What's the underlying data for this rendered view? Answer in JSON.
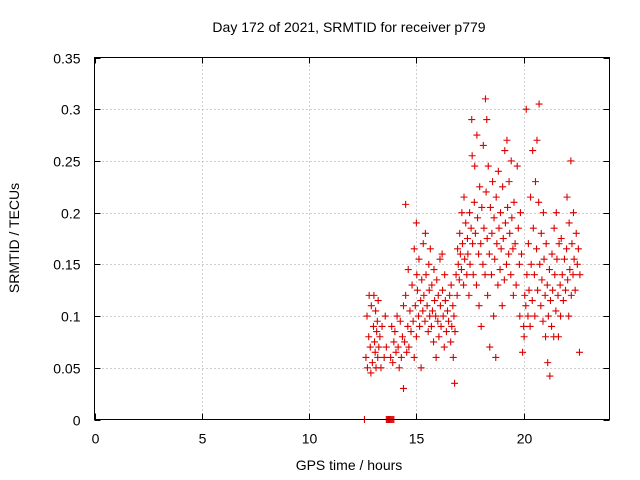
{
  "chart_data": {
    "type": "scatter",
    "title": "Day 172 of 2021, SRMTID for receiver p779",
    "xlabel": "GPS time / hours",
    "ylabel": "SRMTID / TECUs",
    "xlim": [
      0,
      24
    ],
    "ylim": [
      0,
      0.35
    ],
    "xticks": [
      0,
      5,
      10,
      15,
      20
    ],
    "xtick_labels": [
      "0",
      "5",
      "10",
      "15",
      "20"
    ],
    "yticks": [
      0,
      0.05,
      0.1,
      0.15,
      0.2,
      0.25,
      0.3,
      0.35
    ],
    "ytick_labels": [
      "0",
      "0.05",
      "0.1",
      "0.15",
      "0.2",
      "0.25",
      "0.3",
      "0.35"
    ],
    "grid": true,
    "marker": "plus",
    "color": "#dd0000",
    "series": [
      {
        "name": "SRMTID",
        "points": [
          [
            12.58,
            0.0
          ],
          [
            13.6,
            0.0
          ],
          [
            13.65,
            0.0
          ],
          [
            13.7,
            0.0
          ],
          [
            13.75,
            0.0
          ],
          [
            13.8,
            0.0
          ],
          [
            13.85,
            0.0
          ],
          [
            13.9,
            0.0
          ],
          [
            13.95,
            0.0
          ],
          [
            12.65,
            0.06
          ],
          [
            12.7,
            0.1
          ],
          [
            12.72,
            0.05
          ],
          [
            12.78,
            0.08
          ],
          [
            12.8,
            0.12
          ],
          [
            12.85,
            0.07
          ],
          [
            12.88,
            0.045
          ],
          [
            12.9,
            0.11
          ],
          [
            12.95,
            0.055
          ],
          [
            13.0,
            0.09
          ],
          [
            13.02,
            0.12
          ],
          [
            13.05,
            0.075
          ],
          [
            13.08,
            0.065
          ],
          [
            13.1,
            0.105
          ],
          [
            13.12,
            0.05
          ],
          [
            13.15,
            0.085
          ],
          [
            13.18,
            0.095
          ],
          [
            13.2,
            0.06
          ],
          [
            13.22,
            0.115
          ],
          [
            13.25,
            0.07
          ],
          [
            13.3,
            0.08
          ],
          [
            13.35,
            0.05
          ],
          [
            13.4,
            0.09
          ],
          [
            13.5,
            0.06
          ],
          [
            13.55,
            0.1
          ],
          [
            13.6,
            0.07
          ],
          [
            13.8,
            0.06
          ],
          [
            13.85,
            0.09
          ],
          [
            13.9,
            0.055
          ],
          [
            13.95,
            0.075
          ],
          [
            14.0,
            0.085
          ],
          [
            14.05,
            0.065
          ],
          [
            14.1,
            0.1
          ],
          [
            14.15,
            0.07
          ],
          [
            14.2,
            0.05
          ],
          [
            14.25,
            0.095
          ],
          [
            14.3,
            0.06
          ],
          [
            14.35,
            0.08
          ],
          [
            14.4,
            0.03
          ],
          [
            14.4,
            0.11
          ],
          [
            14.45,
            0.075
          ],
          [
            14.5,
            0.12
          ],
          [
            14.5,
            0.208
          ],
          [
            14.55,
            0.065
          ],
          [
            14.6,
            0.09
          ],
          [
            14.62,
            0.145
          ],
          [
            14.65,
            0.07
          ],
          [
            14.7,
            0.105
          ],
          [
            14.75,
            0.085
          ],
          [
            14.8,
            0.13
          ],
          [
            14.85,
            0.095
          ],
          [
            14.9,
            0.165
          ],
          [
            14.9,
            0.06
          ],
          [
            14.95,
            0.11
          ],
          [
            15.0,
            0.08
          ],
          [
            15.0,
            0.19
          ],
          [
            15.02,
            0.14
          ],
          [
            15.05,
            0.125
          ],
          [
            15.1,
            0.1
          ],
          [
            15.12,
            0.155
          ],
          [
            15.15,
            0.09
          ],
          [
            15.2,
            0.115
          ],
          [
            15.22,
            0.05
          ],
          [
            15.25,
            0.135
          ],
          [
            15.3,
            0.105
          ],
          [
            15.32,
            0.17
          ],
          [
            15.35,
            0.12
          ],
          [
            15.4,
            0.095
          ],
          [
            15.42,
            0.18
          ],
          [
            15.45,
            0.14
          ],
          [
            15.5,
            0.11
          ],
          [
            15.55,
            0.085
          ],
          [
            15.58,
            0.15
          ],
          [
            15.6,
            0.125
          ],
          [
            15.62,
            0.1
          ],
          [
            15.65,
            0.165
          ],
          [
            15.7,
            0.09
          ],
          [
            15.72,
            0.13
          ],
          [
            15.75,
            0.105
          ],
          [
            15.8,
            0.075
          ],
          [
            15.82,
            0.145
          ],
          [
            15.85,
            0.115
          ],
          [
            15.9,
            0.1
          ],
          [
            15.92,
            0.06
          ],
          [
            15.95,
            0.135
          ],
          [
            16.0,
            0.095
          ],
          [
            16.02,
            0.12
          ],
          [
            16.05,
            0.08
          ],
          [
            16.1,
            0.155
          ],
          [
            16.12,
            0.11
          ],
          [
            16.15,
            0.09
          ],
          [
            16.2,
            0.16
          ],
          [
            16.22,
            0.125
          ],
          [
            16.25,
            0.1
          ],
          [
            16.3,
            0.07
          ],
          [
            16.32,
            0.14
          ],
          [
            16.35,
            0.115
          ],
          [
            16.4,
            0.085
          ],
          [
            16.45,
            0.105
          ],
          [
            16.5,
            0.095
          ],
          [
            16.55,
            0.12
          ],
          [
            16.6,
            0.075
          ],
          [
            16.62,
            0.13
          ],
          [
            16.65,
            0.09
          ],
          [
            16.7,
            0.11
          ],
          [
            16.72,
            0.06
          ],
          [
            16.75,
            0.1
          ],
          [
            16.78,
            0.035
          ],
          [
            16.8,
            0.085
          ],
          [
            16.85,
            0.14
          ],
          [
            16.9,
            0.12
          ],
          [
            16.92,
            0.165
          ],
          [
            16.95,
            0.15
          ],
          [
            17.0,
            0.135
          ],
          [
            17.02,
            0.18
          ],
          [
            17.05,
            0.16
          ],
          [
            17.1,
            0.145
          ],
          [
            17.12,
            0.2
          ],
          [
            17.15,
            0.17
          ],
          [
            17.2,
            0.13
          ],
          [
            17.22,
            0.215
          ],
          [
            17.25,
            0.155
          ],
          [
            17.3,
            0.19
          ],
          [
            17.35,
            0.14
          ],
          [
            17.38,
            0.175
          ],
          [
            17.4,
            0.16
          ],
          [
            17.45,
            0.12
          ],
          [
            17.48,
            0.2
          ],
          [
            17.5,
            0.15
          ],
          [
            17.55,
            0.185
          ],
          [
            17.58,
            0.29
          ],
          [
            17.6,
            0.255
          ],
          [
            17.62,
            0.17
          ],
          [
            17.65,
            0.14
          ],
          [
            17.7,
            0.21
          ],
          [
            17.72,
            0.245
          ],
          [
            17.75,
            0.18
          ],
          [
            17.8,
            0.13
          ],
          [
            17.82,
            0.275
          ],
          [
            17.85,
            0.195
          ],
          [
            17.9,
            0.16
          ],
          [
            17.92,
            0.11
          ],
          [
            17.95,
            0.225
          ],
          [
            18.0,
            0.17
          ],
          [
            18.02,
            0.09
          ],
          [
            18.05,
            0.205
          ],
          [
            18.1,
            0.15
          ],
          [
            18.12,
            0.265
          ],
          [
            18.15,
            0.185
          ],
          [
            18.2,
            0.14
          ],
          [
            18.22,
            0.31
          ],
          [
            18.25,
            0.22
          ],
          [
            18.28,
            0.29
          ],
          [
            18.3,
            0.175
          ],
          [
            18.32,
            0.12
          ],
          [
            18.35,
            0.245
          ],
          [
            18.4,
            0.16
          ],
          [
            18.42,
            0.07
          ],
          [
            18.45,
            0.205
          ],
          [
            18.5,
            0.14
          ],
          [
            18.52,
            0.18
          ],
          [
            18.55,
            0.23
          ],
          [
            18.6,
            0.1
          ],
          [
            18.62,
            0.195
          ],
          [
            18.65,
            0.155
          ],
          [
            18.7,
            0.06
          ],
          [
            18.72,
            0.215
          ],
          [
            18.75,
            0.17
          ],
          [
            18.8,
            0.13
          ],
          [
            18.82,
            0.24
          ],
          [
            18.85,
            0.185
          ],
          [
            18.9,
            0.145
          ],
          [
            18.92,
            0.2
          ],
          [
            18.95,
            0.165
          ],
          [
            19.0,
            0.11
          ],
          [
            19.02,
            0.225
          ],
          [
            19.05,
            0.175
          ],
          [
            19.1,
            0.135
          ],
          [
            19.12,
            0.26
          ],
          [
            19.15,
            0.19
          ],
          [
            19.2,
            0.15
          ],
          [
            19.22,
            0.27
          ],
          [
            19.25,
            0.205
          ],
          [
            19.3,
            0.16
          ],
          [
            19.32,
            0.23
          ],
          [
            19.35,
            0.18
          ],
          [
            19.4,
            0.14
          ],
          [
            19.42,
            0.25
          ],
          [
            19.45,
            0.195
          ],
          [
            19.5,
            0.165
          ],
          [
            19.52,
            0.12
          ],
          [
            19.55,
            0.21
          ],
          [
            19.6,
            0.17
          ],
          [
            19.65,
            0.13
          ],
          [
            19.7,
            0.245
          ],
          [
            19.75,
            0.185
          ],
          [
            19.8,
            0.15
          ],
          [
            19.82,
            0.1
          ],
          [
            19.85,
            0.2
          ],
          [
            19.9,
            0.16
          ],
          [
            19.95,
            0.065
          ],
          [
            20.0,
            0.09
          ],
          [
            20.02,
            0.08
          ],
          [
            20.05,
            0.12
          ],
          [
            20.1,
            0.11
          ],
          [
            20.12,
            0.3
          ],
          [
            20.15,
            0.14
          ],
          [
            20.2,
            0.1
          ],
          [
            20.22,
            0.17
          ],
          [
            20.25,
            0.125
          ],
          [
            20.3,
            0.09
          ],
          [
            20.32,
            0.215
          ],
          [
            20.35,
            0.15
          ],
          [
            20.4,
            0.115
          ],
          [
            20.42,
            0.26
          ],
          [
            20.45,
            0.185
          ],
          [
            20.5,
            0.14
          ],
          [
            20.52,
            0.1
          ],
          [
            20.55,
            0.23
          ],
          [
            20.6,
            0.165
          ],
          [
            20.62,
            0.27
          ],
          [
            20.65,
            0.125
          ],
          [
            20.7,
            0.21
          ],
          [
            20.72,
            0.305
          ],
          [
            20.75,
            0.15
          ],
          [
            20.8,
            0.11
          ],
          [
            20.82,
            0.18
          ],
          [
            20.85,
            0.135
          ],
          [
            20.9,
            0.095
          ],
          [
            20.92,
            0.2
          ],
          [
            20.95,
            0.155
          ],
          [
            21.0,
            0.12
          ],
          [
            21.02,
            0.08
          ],
          [
            21.05,
            0.17
          ],
          [
            21.1,
            0.13
          ],
          [
            21.12,
            0.055
          ],
          [
            21.15,
            0.1
          ],
          [
            21.2,
            0.145
          ],
          [
            21.22,
            0.042
          ],
          [
            21.25,
            0.115
          ],
          [
            21.3,
            0.09
          ],
          [
            21.32,
            0.16
          ],
          [
            21.35,
            0.125
          ],
          [
            21.4,
            0.08
          ],
          [
            21.42,
            0.185
          ],
          [
            21.45,
            0.14
          ],
          [
            21.5,
            0.105
          ],
          [
            21.52,
            0.2
          ],
          [
            21.55,
            0.155
          ],
          [
            21.6,
            0.12
          ],
          [
            21.62,
            0.08
          ],
          [
            21.65,
            0.17
          ],
          [
            21.7,
            0.13
          ],
          [
            21.72,
            0.1
          ],
          [
            21.75,
            0.175
          ],
          [
            21.8,
            0.14
          ],
          [
            21.85,
            0.115
          ],
          [
            21.9,
            0.155
          ],
          [
            21.95,
            0.125
          ],
          [
            22.0,
            0.165
          ],
          [
            22.02,
            0.215
          ],
          [
            22.05,
            0.135
          ],
          [
            22.1,
            0.1
          ],
          [
            22.12,
            0.19
          ],
          [
            22.15,
            0.145
          ],
          [
            22.2,
            0.25
          ],
          [
            22.22,
            0.12
          ],
          [
            22.25,
            0.17
          ],
          [
            22.3,
            0.14
          ],
          [
            22.32,
            0.2
          ],
          [
            22.35,
            0.155
          ],
          [
            22.4,
            0.125
          ],
          [
            22.45,
            0.18
          ],
          [
            22.5,
            0.15
          ],
          [
            22.55,
            0.165
          ],
          [
            22.6,
            0.065
          ],
          [
            22.62,
            0.14
          ]
        ]
      }
    ]
  }
}
